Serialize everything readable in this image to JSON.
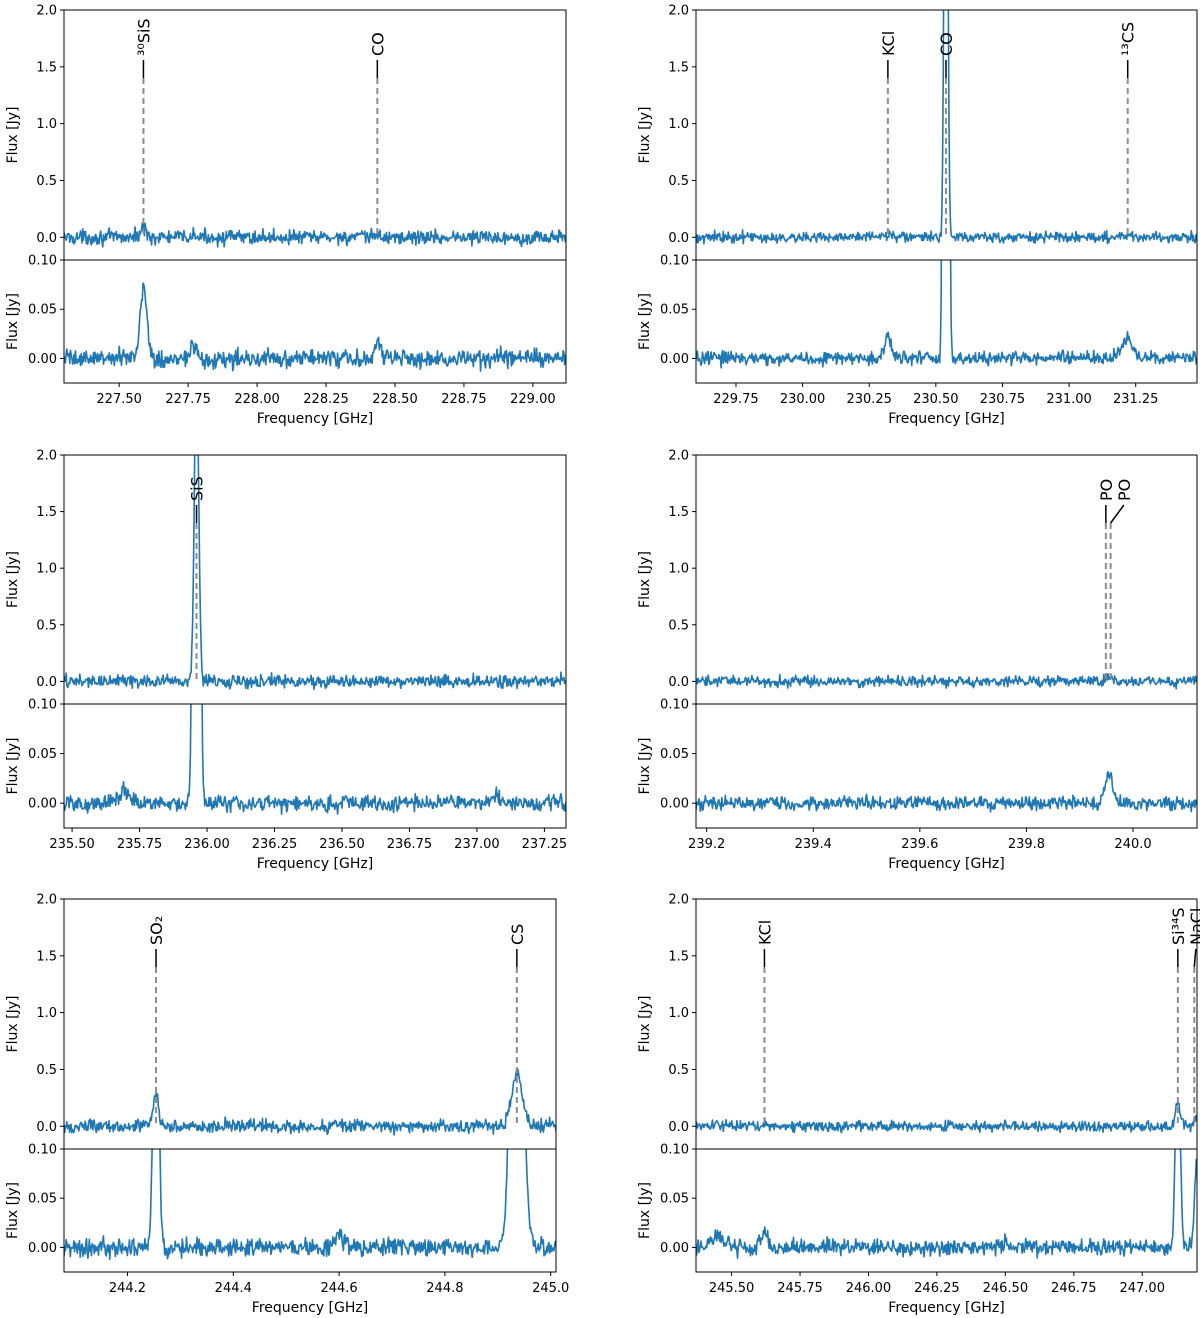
{
  "chart_data": [
    {
      "type": "line",
      "panel": "top-left",
      "xlabel": "Frequency [GHz]",
      "xlim": [
        227.3,
        229.12
      ],
      "xticks": [
        "227.50",
        "227.75",
        "228.00",
        "228.25",
        "228.50",
        "228.75",
        "229.00"
      ],
      "upper": {
        "ylabel": "Flux [Jy]",
        "ylim": [
          -0.2,
          2.0
        ],
        "yticks": [
          "0.0",
          "0.5",
          "1.0",
          "1.5",
          "2.0"
        ],
        "noise": 0.055
      },
      "lower": {
        "ylabel": "Flux [Jy]",
        "ylim": [
          -0.025,
          0.1
        ],
        "yticks": [
          "0.00",
          "0.05",
          "0.10"
        ],
        "noise": 0.008
      },
      "features": [
        {
          "center": 227.588,
          "height": 0.075,
          "width": 0.012
        },
        {
          "center": 228.436,
          "height": 0.02,
          "width": 0.01
        },
        {
          "center": 227.77,
          "height": 0.01,
          "width": 0.01
        }
      ],
      "lines": [
        {
          "label": "30SiS",
          "display": "³⁰SiS",
          "frequency": 227.588
        },
        {
          "label": "CO",
          "display": "CO",
          "frequency": 228.436
        }
      ],
      "series_color": "#1f77b4"
    },
    {
      "type": "line",
      "panel": "top-right",
      "xlabel": "Frequency [GHz]",
      "xlim": [
        229.6,
        231.48
      ],
      "xticks": [
        "229.75",
        "230.00",
        "230.25",
        "230.50",
        "230.75",
        "231.00",
        "231.25"
      ],
      "upper": {
        "ylabel": "Flux [Jy]",
        "ylim": [
          -0.2,
          2.0
        ],
        "yticks": [
          "0.0",
          "0.5",
          "1.0",
          "1.5",
          "2.0"
        ],
        "noise": 0.04
      },
      "lower": {
        "ylabel": "Flux [Jy]",
        "ylim": [
          -0.025,
          0.1
        ],
        "yticks": [
          "0.00",
          "0.05",
          "0.10"
        ],
        "noise": 0.006
      },
      "features": [
        {
          "center": 230.538,
          "height": 6.0,
          "width": 0.006
        },
        {
          "center": 230.32,
          "height": 0.022,
          "width": 0.012
        },
        {
          "center": 231.22,
          "height": 0.02,
          "width": 0.02
        }
      ],
      "lines": [
        {
          "label": "KCl",
          "display": "KCl",
          "frequency": 230.32
        },
        {
          "label": "CO",
          "display": "CO",
          "frequency": 230.538
        },
        {
          "label": "13CS",
          "display": "¹³CS",
          "frequency": 231.22
        }
      ],
      "series_color": "#1f77b4"
    },
    {
      "type": "line",
      "panel": "middle-left",
      "xlabel": "Frequency [GHz]",
      "xlim": [
        235.47,
        237.33
      ],
      "xticks": [
        "235.50",
        "235.75",
        "236.00",
        "236.25",
        "236.50",
        "236.75",
        "237.00",
        "237.25"
      ],
      "upper": {
        "ylabel": "Flux [Jy]",
        "ylim": [
          -0.2,
          2.0
        ],
        "yticks": [
          "0.0",
          "0.5",
          "1.0",
          "1.5",
          "2.0"
        ],
        "noise": 0.05
      },
      "lower": {
        "ylabel": "Flux [Jy]",
        "ylim": [
          -0.025,
          0.1
        ],
        "yticks": [
          "0.00",
          "0.05",
          "0.10"
        ],
        "noise": 0.007
      },
      "features": [
        {
          "center": 235.961,
          "height": 2.8,
          "width": 0.008
        },
        {
          "center": 235.69,
          "height": 0.012,
          "width": 0.02
        },
        {
          "center": 237.07,
          "height": 0.01,
          "width": 0.01
        }
      ],
      "lines": [
        {
          "label": "SiS",
          "display": "SiS",
          "frequency": 235.961
        }
      ],
      "series_color": "#1f77b4"
    },
    {
      "type": "line",
      "panel": "middle-right",
      "xlabel": "Frequency [GHz]",
      "xlim": [
        239.18,
        240.12
      ],
      "xticks": [
        "239.2",
        "239.4",
        "239.6",
        "239.8",
        "240.0"
      ],
      "upper": {
        "ylabel": "Flux [Jy]",
        "ylim": [
          -0.2,
          2.0
        ],
        "yticks": [
          "0.0",
          "0.5",
          "1.0",
          "1.5",
          "2.0"
        ],
        "noise": 0.04
      },
      "lower": {
        "ylabel": "Flux [Jy]",
        "ylim": [
          -0.025,
          0.1
        ],
        "yticks": [
          "0.00",
          "0.05",
          "0.10"
        ],
        "noise": 0.006
      },
      "features": [
        {
          "center": 239.955,
          "height": 0.028,
          "width": 0.008
        }
      ],
      "lines": [
        {
          "label": "PO",
          "display": "PO",
          "frequency": 239.949
        },
        {
          "label": "PO",
          "display": "PO",
          "frequency": 239.958
        }
      ],
      "series_color": "#1f77b4"
    },
    {
      "type": "line",
      "panel": "bottom-left",
      "xlabel": "Frequency [GHz]",
      "xlim": [
        244.08,
        245.01
      ],
      "xticks": [
        "244.2",
        "244.4",
        "244.6",
        "244.8",
        "245.0"
      ],
      "upper": {
        "ylabel": "Flux [Jy]",
        "ylim": [
          -0.2,
          2.0
        ],
        "yticks": [
          "0.0",
          "0.5",
          "1.0",
          "1.5",
          "2.0"
        ],
        "noise": 0.05
      },
      "lower": {
        "ylabel": "Flux [Jy]",
        "ylim": [
          -0.025,
          0.1
        ],
        "yticks": [
          "0.00",
          "0.05",
          "0.10"
        ],
        "noise": 0.008
      },
      "features": [
        {
          "center": 244.254,
          "height": 0.3,
          "width": 0.005
        },
        {
          "center": 244.936,
          "height": 0.46,
          "width": 0.01
        },
        {
          "center": 244.6,
          "height": 0.01,
          "width": 0.01
        }
      ],
      "lines": [
        {
          "label": "SO2",
          "display": "SO₂",
          "frequency": 244.254
        },
        {
          "label": "CS",
          "display": "CS",
          "frequency": 244.936
        }
      ],
      "series_color": "#1f77b4"
    },
    {
      "type": "line",
      "panel": "bottom-right",
      "xlabel": "Frequency [GHz]",
      "xlim": [
        245.37,
        247.2
      ],
      "xticks": [
        "245.50",
        "245.75",
        "246.00",
        "246.25",
        "246.50",
        "246.75",
        "247.00"
      ],
      "upper": {
        "ylabel": "Flux [Jy]",
        "ylim": [
          -0.2,
          2.0
        ],
        "yticks": [
          "0.0",
          "0.5",
          "1.0",
          "1.5",
          "2.0"
        ],
        "noise": 0.04
      },
      "lower": {
        "ylabel": "Flux [Jy]",
        "ylim": [
          -0.025,
          0.1
        ],
        "yticks": [
          "0.00",
          "0.05",
          "0.10"
        ],
        "noise": 0.007
      },
      "features": [
        {
          "center": 247.13,
          "height": 0.22,
          "width": 0.008
        },
        {
          "center": 247.2,
          "height": 0.09,
          "width": 0.008
        },
        {
          "center": 245.62,
          "height": 0.012,
          "width": 0.012
        },
        {
          "center": 245.45,
          "height": 0.012,
          "width": 0.02
        },
        {
          "center": 246.5,
          "height": 0.01,
          "width": 0.005
        }
      ],
      "lines": [
        {
          "label": "KCl",
          "display": "KCl",
          "frequency": 245.62
        },
        {
          "label": "Si34S",
          "display": "Si³⁴S",
          "frequency": 247.13
        },
        {
          "label": "NaCl",
          "display": "NaCl",
          "frequency": 247.19
        }
      ],
      "series_color": "#1f77b4"
    }
  ]
}
